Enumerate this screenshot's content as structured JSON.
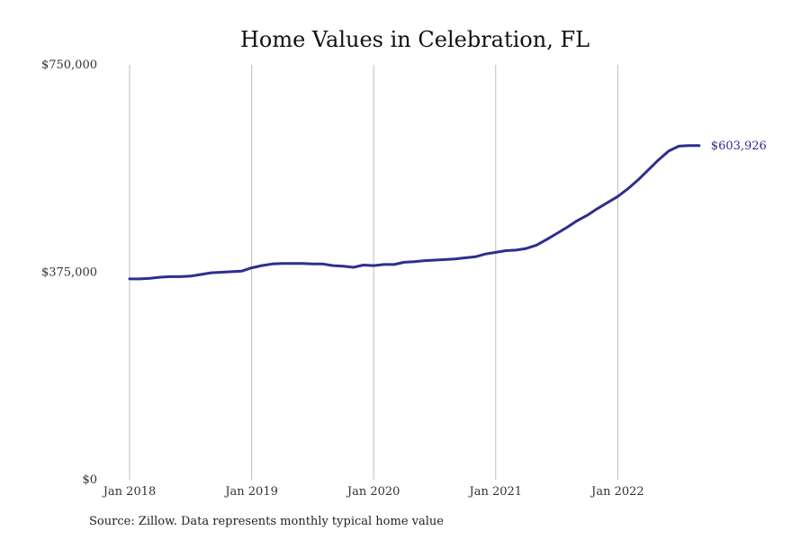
{
  "chart_data": {
    "type": "line",
    "title": "Home Values in Celebration, FL",
    "xlabel": "",
    "ylabel": "",
    "ylim": [
      0,
      750000
    ],
    "y_ticks": [
      {
        "value": 0,
        "label": "$0"
      },
      {
        "value": 375000,
        "label": "$375,000"
      },
      {
        "value": 750000,
        "label": "$750,000"
      }
    ],
    "x_ticks": [
      {
        "value": 0,
        "label": "Jan 2018"
      },
      {
        "value": 12,
        "label": "Jan 2019"
      },
      {
        "value": 24,
        "label": "Jan 2020"
      },
      {
        "value": 36,
        "label": "Jan 2021"
      },
      {
        "value": 48,
        "label": "Jan 2022"
      }
    ],
    "grid": "vertical",
    "series": [
      {
        "color": "#2e2e8f",
        "end_label": "$603,926",
        "x": [
          0,
          1,
          2,
          3,
          4,
          5,
          6,
          7,
          8,
          9,
          10,
          11,
          12,
          13,
          14,
          15,
          16,
          17,
          18,
          19,
          20,
          21,
          22,
          23,
          24,
          25,
          26,
          27,
          28,
          29,
          30,
          31,
          32,
          33,
          34,
          35,
          36,
          37,
          38,
          39,
          40,
          41,
          42,
          43,
          44,
          45,
          46,
          47,
          48,
          49,
          50,
          51,
          52,
          53,
          54,
          55,
          56
        ],
        "values": [
          363000,
          363000,
          364000,
          366000,
          367000,
          367000,
          368000,
          371000,
          374000,
          375000,
          376000,
          377000,
          383000,
          387000,
          390000,
          391000,
          391000,
          391000,
          390000,
          390000,
          387000,
          386000,
          384000,
          388000,
          387000,
          389000,
          389000,
          393000,
          394000,
          396000,
          397000,
          398000,
          399000,
          401000,
          403000,
          408000,
          411000,
          414000,
          415000,
          418000,
          424000,
          434000,
          445000,
          456000,
          468000,
          478000,
          490000,
          501000,
          512000,
          526000,
          542000,
          560000,
          578000,
          594000,
          603000,
          604000,
          603926
        ]
      }
    ]
  },
  "source_text": "Source: Zillow. Data represents monthly typical home value"
}
